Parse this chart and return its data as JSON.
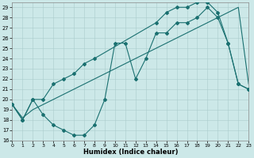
{
  "xlabel": "Humidex (Indice chaleur)",
  "xlim": [
    0,
    23
  ],
  "ylim": [
    16,
    29.5
  ],
  "yticks": [
    16,
    17,
    18,
    19,
    20,
    21,
    22,
    23,
    24,
    25,
    26,
    27,
    28,
    29
  ],
  "xticks": [
    0,
    1,
    2,
    3,
    4,
    5,
    6,
    7,
    8,
    9,
    10,
    11,
    12,
    13,
    14,
    15,
    16,
    17,
    18,
    19,
    20,
    21,
    22,
    23
  ],
  "bg_color": "#cce8e8",
  "grid_color": "#aacccc",
  "line_color": "#1a7070",
  "line1_x": [
    0,
    1,
    2,
    3,
    4,
    5,
    6,
    7,
    8,
    9,
    10,
    11,
    12,
    13,
    14,
    15,
    16,
    17,
    18,
    19,
    20,
    21,
    22,
    23
  ],
  "line1_y": [
    19.5,
    18.0,
    20.0,
    18.5,
    17.5,
    17.0,
    16.5,
    16.5,
    17.5,
    20.0,
    25.5,
    25.5,
    22.0,
    24.0,
    26.5,
    26.5,
    27.5,
    27.5,
    28.0,
    29.0,
    28.0,
    25.5,
    21.5,
    21.0
  ],
  "line2_x": [
    0,
    1,
    2,
    3,
    4,
    5,
    6,
    7,
    8,
    9,
    10,
    11,
    12,
    13,
    14,
    15,
    16,
    17,
    18,
    19,
    20,
    21,
    22,
    23
  ],
  "line2_y": [
    19.5,
    18.2,
    19.0,
    19.5,
    20.0,
    20.5,
    21.0,
    21.5,
    22.0,
    22.5,
    23.0,
    23.5,
    24.0,
    24.5,
    25.0,
    25.5,
    26.0,
    26.5,
    27.0,
    27.5,
    28.0,
    28.5,
    29.0,
    21.5
  ],
  "line3_x": [
    0,
    1,
    2,
    3,
    4,
    5,
    6,
    7,
    8,
    14,
    15,
    16,
    17,
    18,
    19,
    20,
    21,
    22,
    23
  ],
  "line3_y": [
    19.5,
    18.0,
    20.0,
    20.0,
    21.5,
    22.0,
    22.5,
    23.5,
    24.0,
    27.5,
    28.5,
    29.0,
    29.0,
    29.5,
    29.5,
    28.5,
    25.5,
    21.5,
    21.0
  ]
}
